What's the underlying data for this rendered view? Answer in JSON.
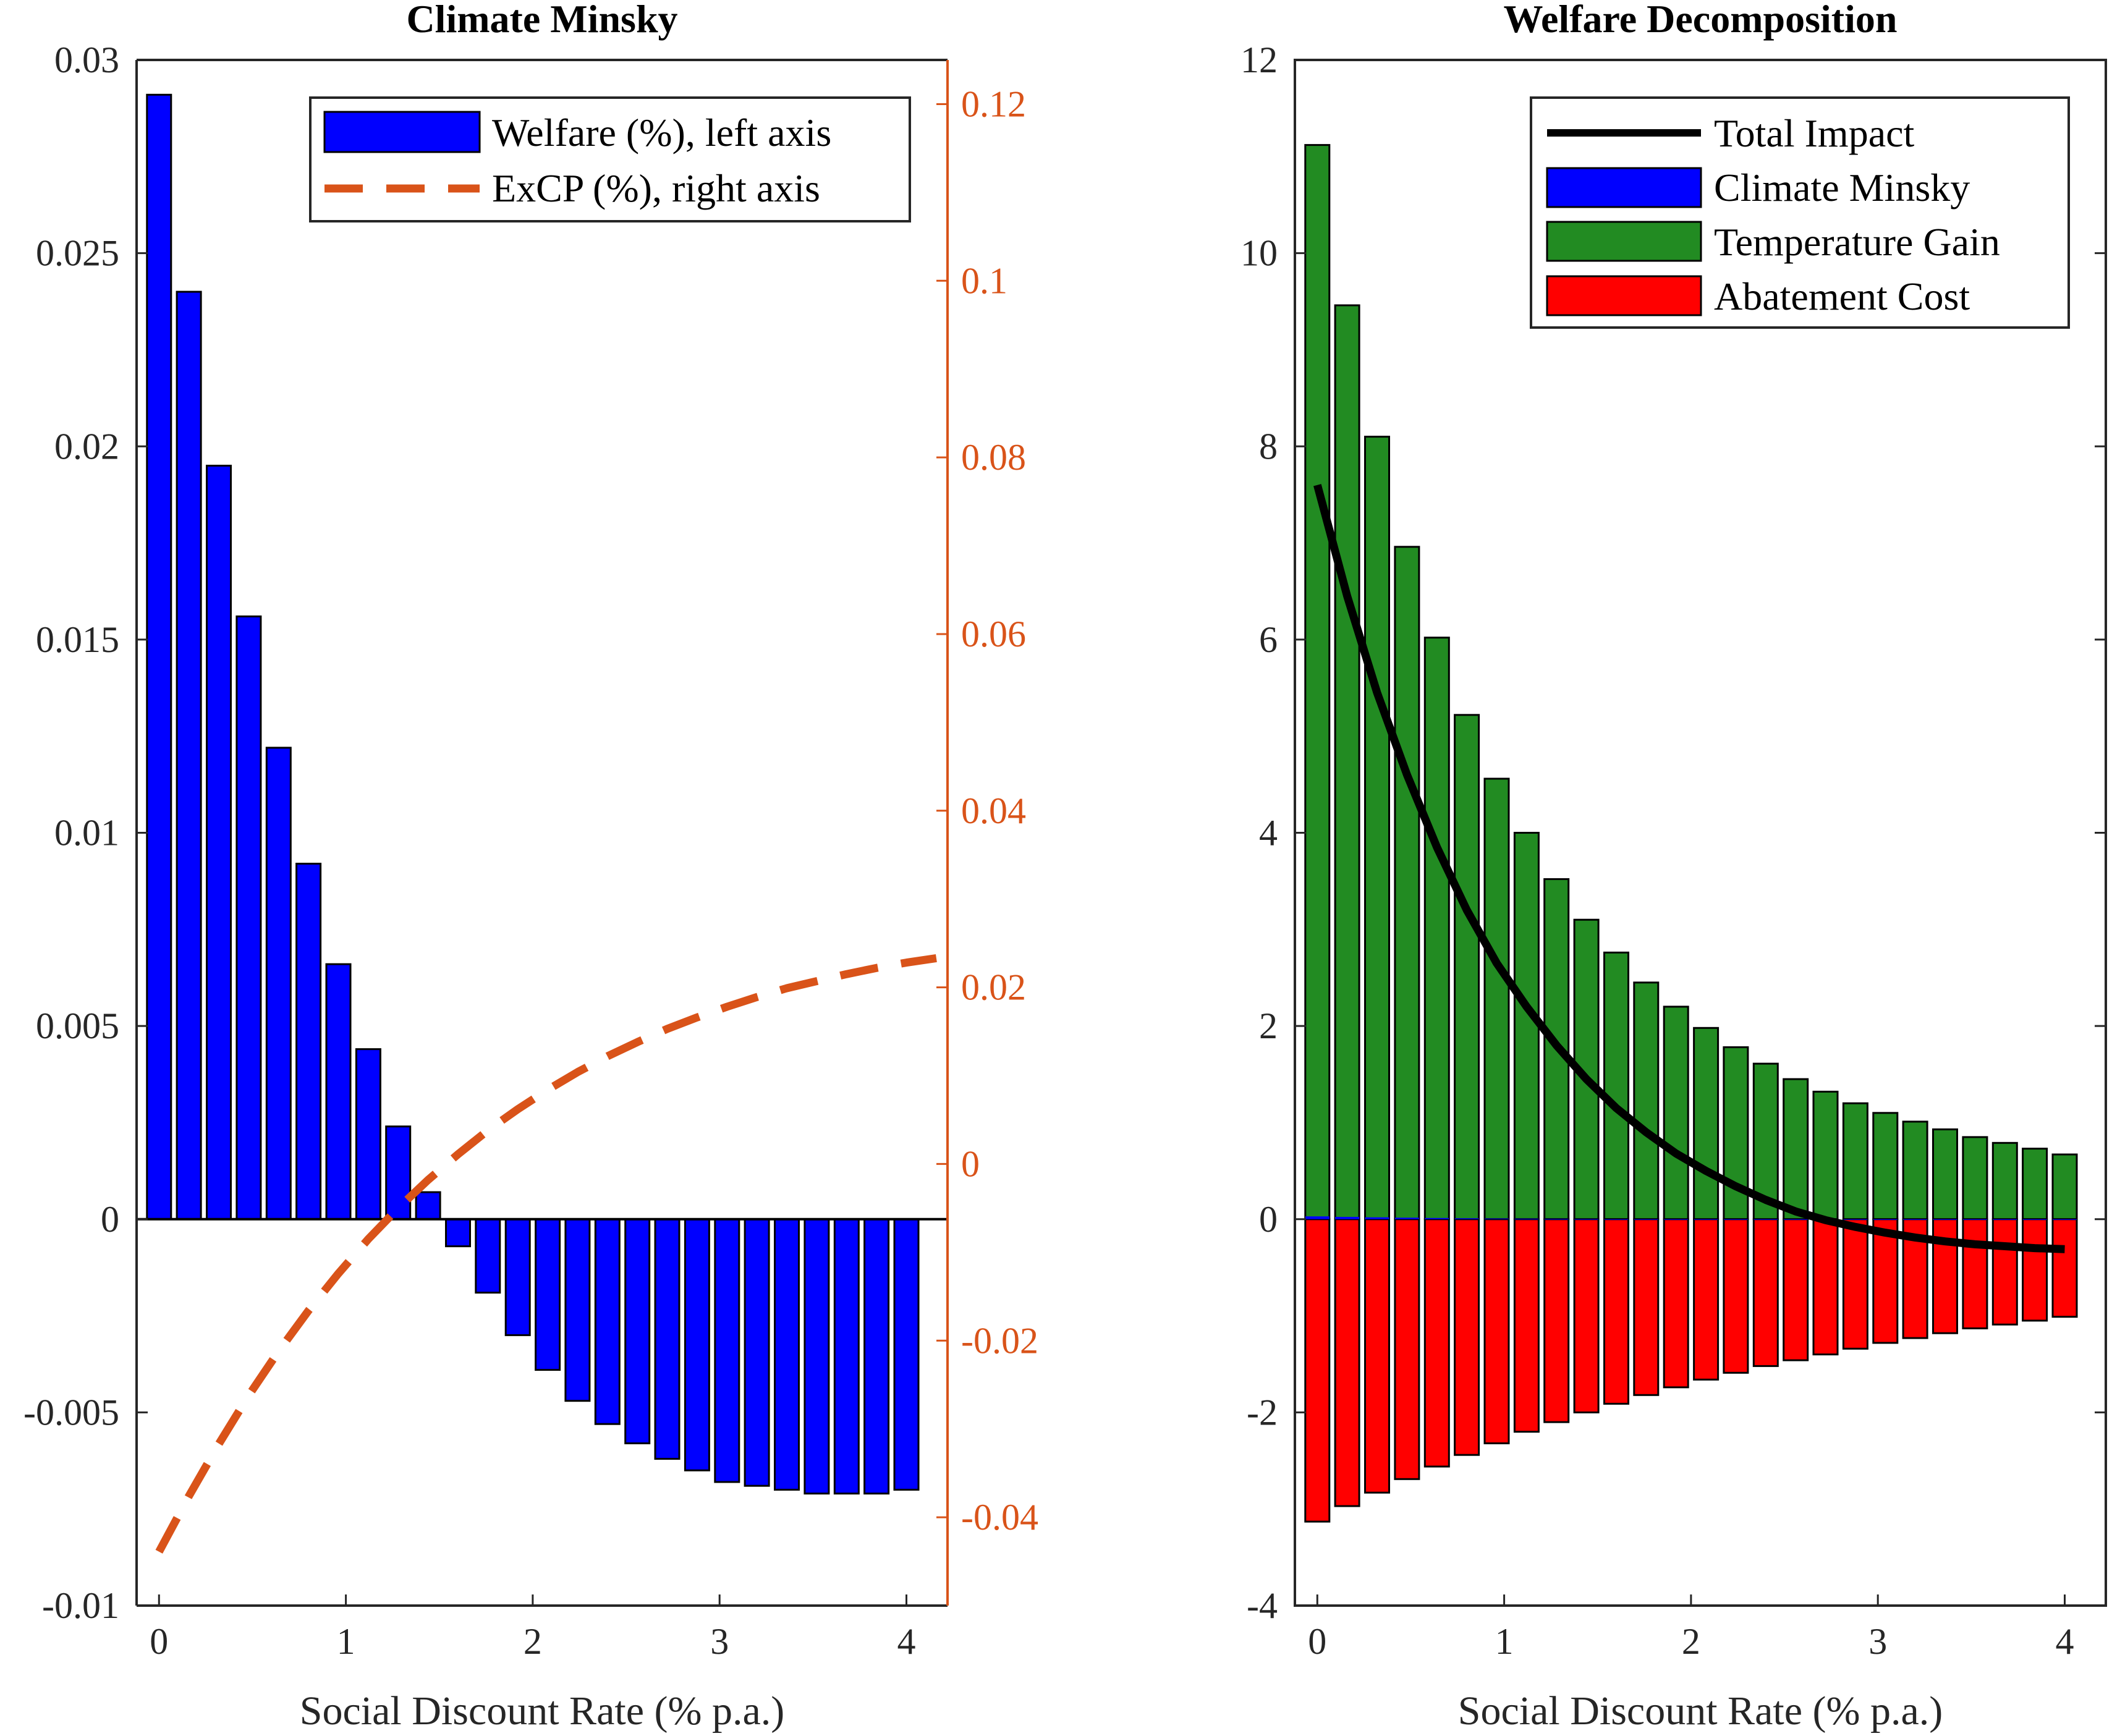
{
  "chart_data": [
    {
      "type": "bar",
      "title": "Climate Minsky",
      "xlabel": "Social Discount Rate (% p.a.)",
      "ylabel": "",
      "xlim": [
        -0.12,
        4.22
      ],
      "xticks": [
        0,
        1,
        2,
        3,
        4
      ],
      "xtick_labels": [
        "0",
        "1",
        "2",
        "3",
        "4"
      ],
      "ylim": [
        -0.01,
        0.03
      ],
      "yticks": [
        -0.01,
        -0.005,
        0,
        0.005,
        0.01,
        0.015,
        0.02,
        0.025,
        0.03
      ],
      "ytick_labels": [
        "-0.01",
        "-0.005",
        "0",
        "0.005",
        "0.01",
        "0.015",
        "0.02",
        "0.025",
        "0.03"
      ],
      "y2lim": [
        -0.05,
        0.125
      ],
      "y2ticks": [
        -0.04,
        -0.02,
        0,
        0.02,
        0.04,
        0.06,
        0.08,
        0.1,
        0.12
      ],
      "y2tick_labels": [
        "-0.04",
        "-0.02",
        "0",
        "0.02",
        "0.04",
        "0.06",
        "0.08",
        "0.1",
        "0.12"
      ],
      "legend_position": "top-right",
      "x": [
        0.0,
        0.16,
        0.32,
        0.48,
        0.64,
        0.8,
        0.96,
        1.12,
        1.28,
        1.44,
        1.6,
        1.76,
        1.92,
        2.08,
        2.24,
        2.4,
        2.56,
        2.72,
        2.88,
        3.04,
        3.2,
        3.36,
        3.52,
        3.68,
        3.84,
        4.0
      ],
      "series": [
        {
          "name": "Welfare (%), left axis",
          "axis": "left",
          "kind": "bar",
          "color": "#0000ff",
          "values": [
            0.0291,
            0.024,
            0.0195,
            0.0156,
            0.0122,
            0.0092,
            0.0066,
            0.0044,
            0.0024,
            0.0007,
            -0.0007,
            -0.0019,
            -0.003,
            -0.0039,
            -0.0047,
            -0.0053,
            -0.0058,
            -0.0062,
            -0.0065,
            -0.0068,
            -0.0069,
            -0.007,
            -0.0071,
            -0.0071,
            -0.0071,
            -0.007
          ]
        },
        {
          "name": "ExCP (%), right axis",
          "axis": "right",
          "kind": "line",
          "style": "dashed",
          "color": "#d95319",
          "x": [
            0.0,
            0.16,
            0.32,
            0.48,
            0.64,
            0.8,
            0.96,
            1.12,
            1.28,
            1.44,
            1.6,
            1.76,
            1.92,
            2.08,
            2.24,
            2.4,
            2.56,
            2.72,
            2.88,
            3.04,
            3.2,
            3.36,
            3.52,
            3.68,
            3.84,
            4.0,
            4.16
          ],
          "values": [
            -0.0439,
            -0.0376,
            -0.0317,
            -0.0262,
            -0.0212,
            -0.0166,
            -0.0124,
            -0.0085,
            -0.005,
            -0.0018,
            0.0011,
            0.0038,
            0.0062,
            0.0084,
            0.0104,
            0.0122,
            0.0138,
            0.0153,
            0.0166,
            0.0178,
            0.0189,
            0.0199,
            0.0207,
            0.0215,
            0.0222,
            0.0228,
            0.0233
          ]
        }
      ]
    },
    {
      "type": "bar",
      "title": "Welfare Decomposition",
      "xlabel": "Social Discount Rate (% p.a.)",
      "ylabel": "",
      "xlim": [
        -0.12,
        4.22
      ],
      "xticks": [
        0,
        1,
        2,
        3,
        4
      ],
      "xtick_labels": [
        "0",
        "1",
        "2",
        "3",
        "4"
      ],
      "ylim": [
        -4,
        12
      ],
      "yticks": [
        -4,
        -2,
        0,
        2,
        4,
        6,
        8,
        10,
        12
      ],
      "ytick_labels": [
        "-4",
        "-2",
        "0",
        "2",
        "4",
        "6",
        "8",
        "10",
        "12"
      ],
      "legend_position": "top-right",
      "x": [
        0.0,
        0.16,
        0.32,
        0.48,
        0.64,
        0.8,
        0.96,
        1.12,
        1.28,
        1.44,
        1.6,
        1.76,
        1.92,
        2.08,
        2.24,
        2.4,
        2.56,
        2.72,
        2.88,
        3.04,
        3.2,
        3.36,
        3.52,
        3.68,
        3.84,
        4.0
      ],
      "series": [
        {
          "name": "Total Impact",
          "kind": "line",
          "color": "#000000",
          "values": [
            7.6,
            6.45,
            5.45,
            4.6,
            3.85,
            3.2,
            2.65,
            2.2,
            1.8,
            1.45,
            1.15,
            0.9,
            0.68,
            0.5,
            0.34,
            0.2,
            0.08,
            -0.01,
            -0.08,
            -0.14,
            -0.19,
            -0.23,
            -0.26,
            -0.28,
            -0.3,
            -0.31
          ]
        },
        {
          "name": "Climate Minsky",
          "kind": "bar",
          "color": "#0000ff",
          "values": [
            0.029,
            0.024,
            0.0195,
            0.0156,
            0.0122,
            0.0092,
            0.0066,
            0.0044,
            0.0024,
            0.0007,
            -0.0007,
            -0.0019,
            -0.003,
            -0.0039,
            -0.0047,
            -0.0053,
            -0.0058,
            -0.0062,
            -0.0065,
            -0.0068,
            -0.0069,
            -0.007,
            -0.0071,
            -0.0071,
            -0.0071,
            -0.007
          ]
        },
        {
          "name": "Temperature Gain",
          "kind": "bar",
          "color": "#228b22",
          "values": [
            11.12,
            9.46,
            8.1,
            6.96,
            6.02,
            5.22,
            4.56,
            4.0,
            3.52,
            3.1,
            2.76,
            2.45,
            2.2,
            1.98,
            1.78,
            1.61,
            1.45,
            1.32,
            1.2,
            1.1,
            1.01,
            0.93,
            0.85,
            0.79,
            0.73,
            0.67
          ]
        },
        {
          "name": "Abatement Cost",
          "kind": "bar",
          "color": "#ff0000",
          "values": [
            -3.13,
            -2.97,
            -2.83,
            -2.69,
            -2.56,
            -2.44,
            -2.32,
            -2.2,
            -2.1,
            -2.0,
            -1.91,
            -1.82,
            -1.74,
            -1.66,
            -1.59,
            -1.52,
            -1.46,
            -1.4,
            -1.34,
            -1.28,
            -1.23,
            -1.18,
            -1.13,
            -1.09,
            -1.05,
            -1.01
          ]
        }
      ]
    }
  ]
}
